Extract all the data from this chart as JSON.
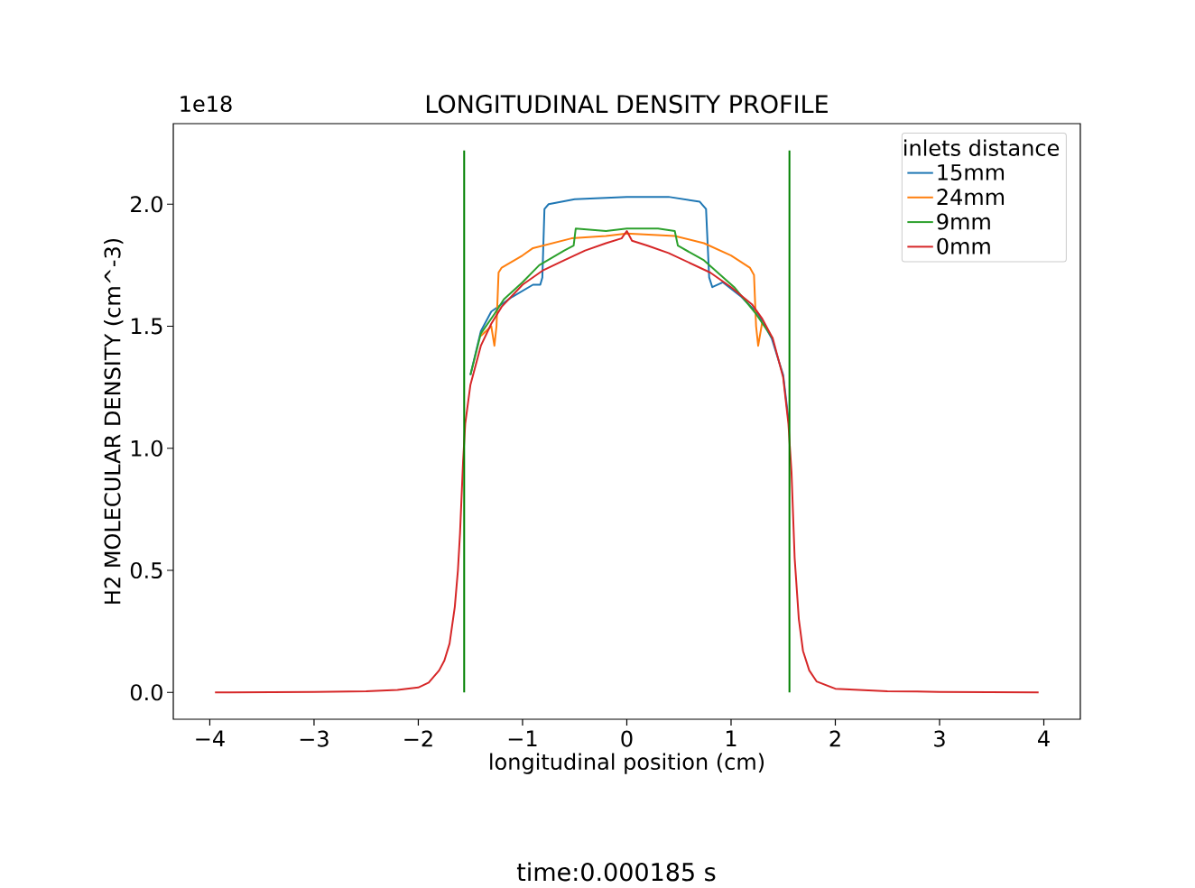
{
  "chart_data": {
    "type": "line",
    "title": "LONGITUDINAL  DENSITY PROFILE",
    "xlabel": "longitudinal position (cm)",
    "ylabel": "H2 MOLECULAR DENSITY (cm^-3)",
    "legend_title": "inlets distance",
    "legend": "top right",
    "annotations": [
      "1e18",
      "time:0.000185 s"
    ],
    "xlim": [
      -4.35,
      4.35
    ],
    "ylim": [
      -0.11,
      2.33
    ],
    "xticks": [
      {
        "value": -4,
        "label": "−4"
      },
      {
        "value": -3,
        "label": "−3"
      },
      {
        "value": -2,
        "label": "−2"
      },
      {
        "value": -1,
        "label": "−1"
      },
      0,
      1,
      2,
      3,
      4
    ],
    "yticks": [
      {
        "value": 0,
        "label": "0.0"
      },
      0.5,
      {
        "value": 1,
        "label": "1.0"
      },
      1.5,
      {
        "value": 2,
        "label": "2.0"
      }
    ],
    "series": [
      {
        "name": "15mm",
        "color": "#1f77b4",
        "x": [
          -1.5,
          -1.4,
          -1.3,
          -1.1,
          -0.9,
          -0.83,
          -0.81,
          -0.79,
          -0.75,
          -0.5,
          0,
          0.4,
          0.7,
          0.76,
          0.79,
          0.82,
          0.92,
          1.1,
          1.26,
          1.39,
          1.5,
          1.55
        ],
        "values": [
          1.3,
          1.48,
          1.56,
          1.62,
          1.67,
          1.67,
          1.7,
          1.98,
          2.0,
          2.02,
          2.03,
          2.03,
          2.01,
          1.98,
          1.7,
          1.66,
          1.68,
          1.62,
          1.55,
          1.45,
          1.3,
          1.12
        ]
      },
      {
        "name": "24mm",
        "color": "#ff7f0e",
        "x": [
          -1.4,
          -1.3,
          -1.27,
          -1.25,
          -1.23,
          -1.2,
          -1.0,
          -0.9,
          -0.53,
          -0.2,
          0,
          0.46,
          0.74,
          1.0,
          1.18,
          1.22,
          1.24,
          1.26,
          1.3
        ],
        "values": [
          1.46,
          1.5,
          1.42,
          1.5,
          1.72,
          1.74,
          1.79,
          1.82,
          1.86,
          1.87,
          1.88,
          1.87,
          1.84,
          1.79,
          1.74,
          1.71,
          1.5,
          1.42,
          1.52
        ]
      },
      {
        "name": "9mm",
        "color": "#2ca02c",
        "x": [
          -1.5,
          -1.4,
          -1.27,
          -1.18,
          -1.0,
          -0.84,
          -0.6,
          -0.51,
          -0.49,
          -0.2,
          0,
          0.3,
          0.46,
          0.49,
          0.74,
          1.03,
          1.24,
          1.4
        ],
        "values": [
          1.3,
          1.47,
          1.55,
          1.61,
          1.68,
          1.75,
          1.81,
          1.83,
          1.9,
          1.89,
          1.9,
          1.9,
          1.89,
          1.83,
          1.77,
          1.66,
          1.55,
          1.45
        ]
      },
      {
        "name": "0mm",
        "color": "#d62728",
        "x": [
          -3.95,
          -3,
          -2.5,
          -2.2,
          -2.0,
          -1.9,
          -1.8,
          -1.75,
          -1.7,
          -1.65,
          -1.62,
          -1.6,
          -1.57,
          -1.55,
          -1.5,
          -1.4,
          -1.3,
          -1.2,
          -1.0,
          -0.8,
          -0.6,
          -0.4,
          -0.2,
          -0.05,
          0,
          0.05,
          0.2,
          0.4,
          0.6,
          0.8,
          1.0,
          1.2,
          1.3,
          1.4,
          1.5,
          1.55,
          1.58,
          1.61,
          1.65,
          1.69,
          1.75,
          1.82,
          2.0,
          2.5,
          3,
          3.95
        ],
        "values": [
          0,
          0.002,
          0.005,
          0.01,
          0.02,
          0.04,
          0.09,
          0.13,
          0.2,
          0.35,
          0.5,
          0.65,
          0.95,
          1.1,
          1.26,
          1.42,
          1.51,
          1.58,
          1.67,
          1.73,
          1.77,
          1.81,
          1.84,
          1.86,
          1.89,
          1.85,
          1.83,
          1.8,
          1.76,
          1.72,
          1.66,
          1.59,
          1.53,
          1.45,
          1.29,
          1.1,
          0.9,
          0.55,
          0.3,
          0.17,
          0.09,
          0.045,
          0.015,
          0.005,
          0.002,
          0
        ]
      },
      {
        "color": "#008000",
        "x": [
          -1.56,
          -1.56
        ],
        "values": [
          0,
          2.22
        ]
      },
      {
        "color": "#008000",
        "x": [
          1.56,
          1.56
        ],
        "values": [
          0,
          2.22
        ]
      }
    ]
  }
}
